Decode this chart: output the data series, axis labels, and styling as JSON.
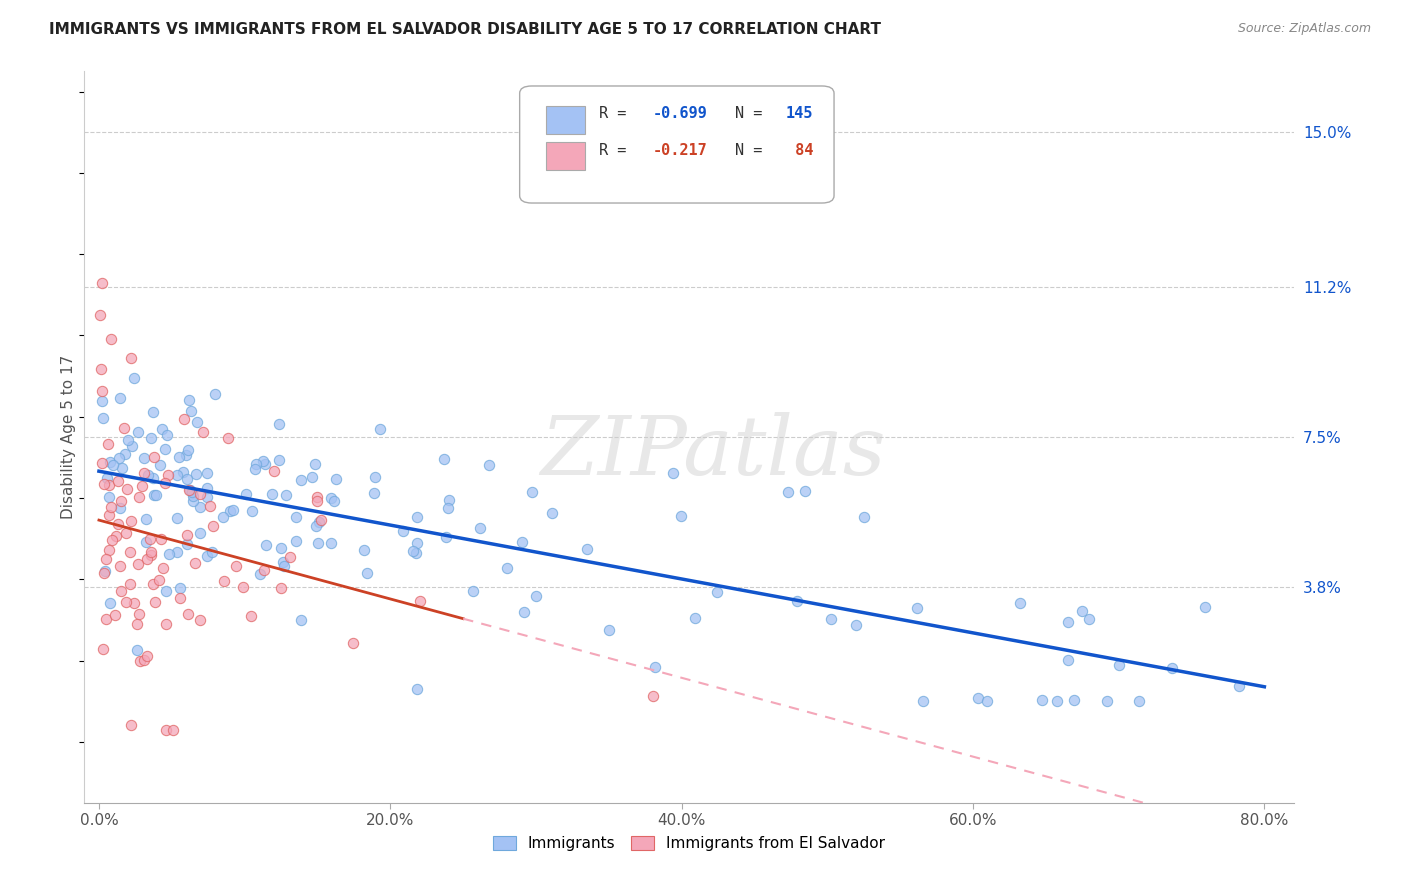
{
  "title": "IMMIGRANTS VS IMMIGRANTS FROM EL SALVADOR DISABILITY AGE 5 TO 17 CORRELATION CHART",
  "source_text": "Source: ZipAtlas.com",
  "ylabel": "Disability Age 5 to 17",
  "xlabel_ticks": [
    "0.0%",
    "20.0%",
    "40.0%",
    "60.0%",
    "80.0%"
  ],
  "xlabel_vals": [
    0.0,
    20.0,
    40.0,
    60.0,
    80.0
  ],
  "ytick_labels": [
    "3.8%",
    "7.5%",
    "11.2%",
    "15.0%"
  ],
  "ytick_vals": [
    3.8,
    7.5,
    11.2,
    15.0
  ],
  "xlim": [
    -1.0,
    82.0
  ],
  "ylim": [
    -1.5,
    16.5
  ],
  "blue_color": "#a4c2f4",
  "pink_color": "#f4a7b9",
  "blue_edge_color": "#6fa8dc",
  "pink_edge_color": "#e06666",
  "blue_line_color": "#1155cc",
  "pink_line_color": "#cc4125",
  "pink_dash_color": "#f4a7b9",
  "watermark": "ZIPatlas",
  "watermark_color": "#cccccc"
}
